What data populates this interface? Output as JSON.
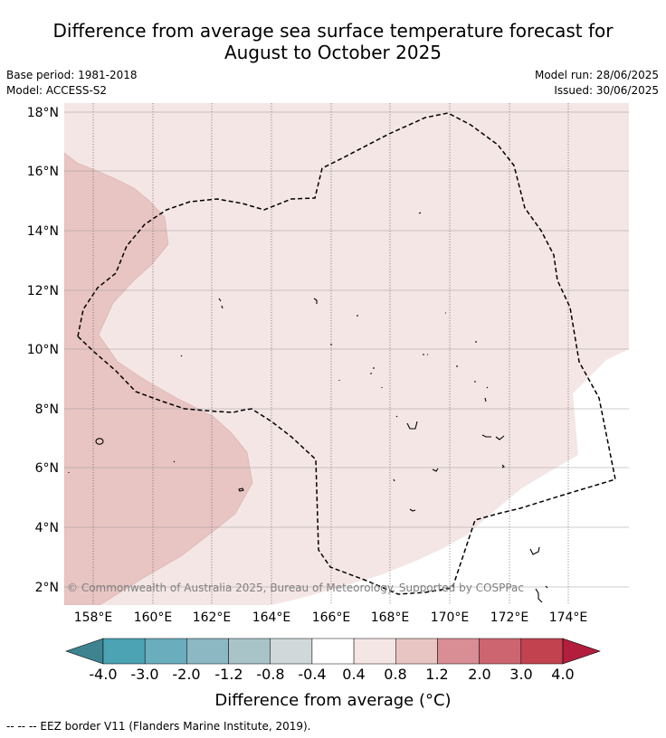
{
  "title_line1": "Difference from average sea surface temperature forecast for",
  "title_line2": "August to October 2025",
  "base_period": "Base period: 1981-2018",
  "model": "Model: ACCESS-S2",
  "model_run": "Model run: 28/06/2025",
  "issued": "Issued: 30/06/2025",
  "copyright": "© Commonwealth of Australia 2025, Bureau of Meteorology. Supported by COSPPac",
  "footer": "-- -- -- EEZ border V11 (Flanders Marine Institute, 2019).",
  "colorbar_title": "Difference from average (°C)",
  "chart_data": {
    "type": "map",
    "lon_range": [
      157,
      176
    ],
    "lat_range": [
      1.4,
      18.3
    ],
    "lon_ticks": [
      158,
      160,
      162,
      164,
      166,
      168,
      170,
      172,
      174
    ],
    "lon_tick_labels": [
      "158°E",
      "160°E",
      "162°E",
      "164°E",
      "166°E",
      "168°E",
      "170°E",
      "172°E",
      "174°E"
    ],
    "lat_ticks": [
      2,
      4,
      6,
      8,
      10,
      12,
      14,
      16,
      18
    ],
    "lat_tick_labels": [
      "2°N",
      "4°N",
      "6°N",
      "8°N",
      "10°N",
      "12°N",
      "14°N",
      "16°N",
      "18°N"
    ],
    "grid": true,
    "colorbar": {
      "boundaries": [
        -4.0,
        -3.0,
        -2.0,
        -1.2,
        -0.8,
        -0.4,
        0.4,
        0.8,
        1.2,
        2.0,
        3.0,
        4.0
      ],
      "labels": [
        "-4.0",
        "-3.0",
        "-2.0",
        "-1.2",
        "-0.8",
        "-0.4",
        "0.4",
        "0.8",
        "1.2",
        "2.0",
        "3.0",
        "4.0"
      ],
      "colors": [
        "#4ba3b4",
        "#6aaebe",
        "#8bb8c3",
        "#a8c4c9",
        "#d0d8da",
        "#ffffff",
        "#f4e6e5",
        "#e8c5c2",
        "#d98d95",
        "#cc6570",
        "#c2434f"
      ],
      "under_color": "#3f8390",
      "over_color": "#b21e3c"
    },
    "regions": [
      {
        "class": "0.4 to 0.8",
        "color": "#f4e6e5",
        "coverage": "most of map"
      },
      {
        "class": "0.8 to 1.2",
        "color": "#e8c5c2",
        "coverage": "western area"
      },
      {
        "class": "-0.4 to 0.4",
        "color": "#ffffff",
        "coverage": "south-east area"
      }
    ]
  }
}
